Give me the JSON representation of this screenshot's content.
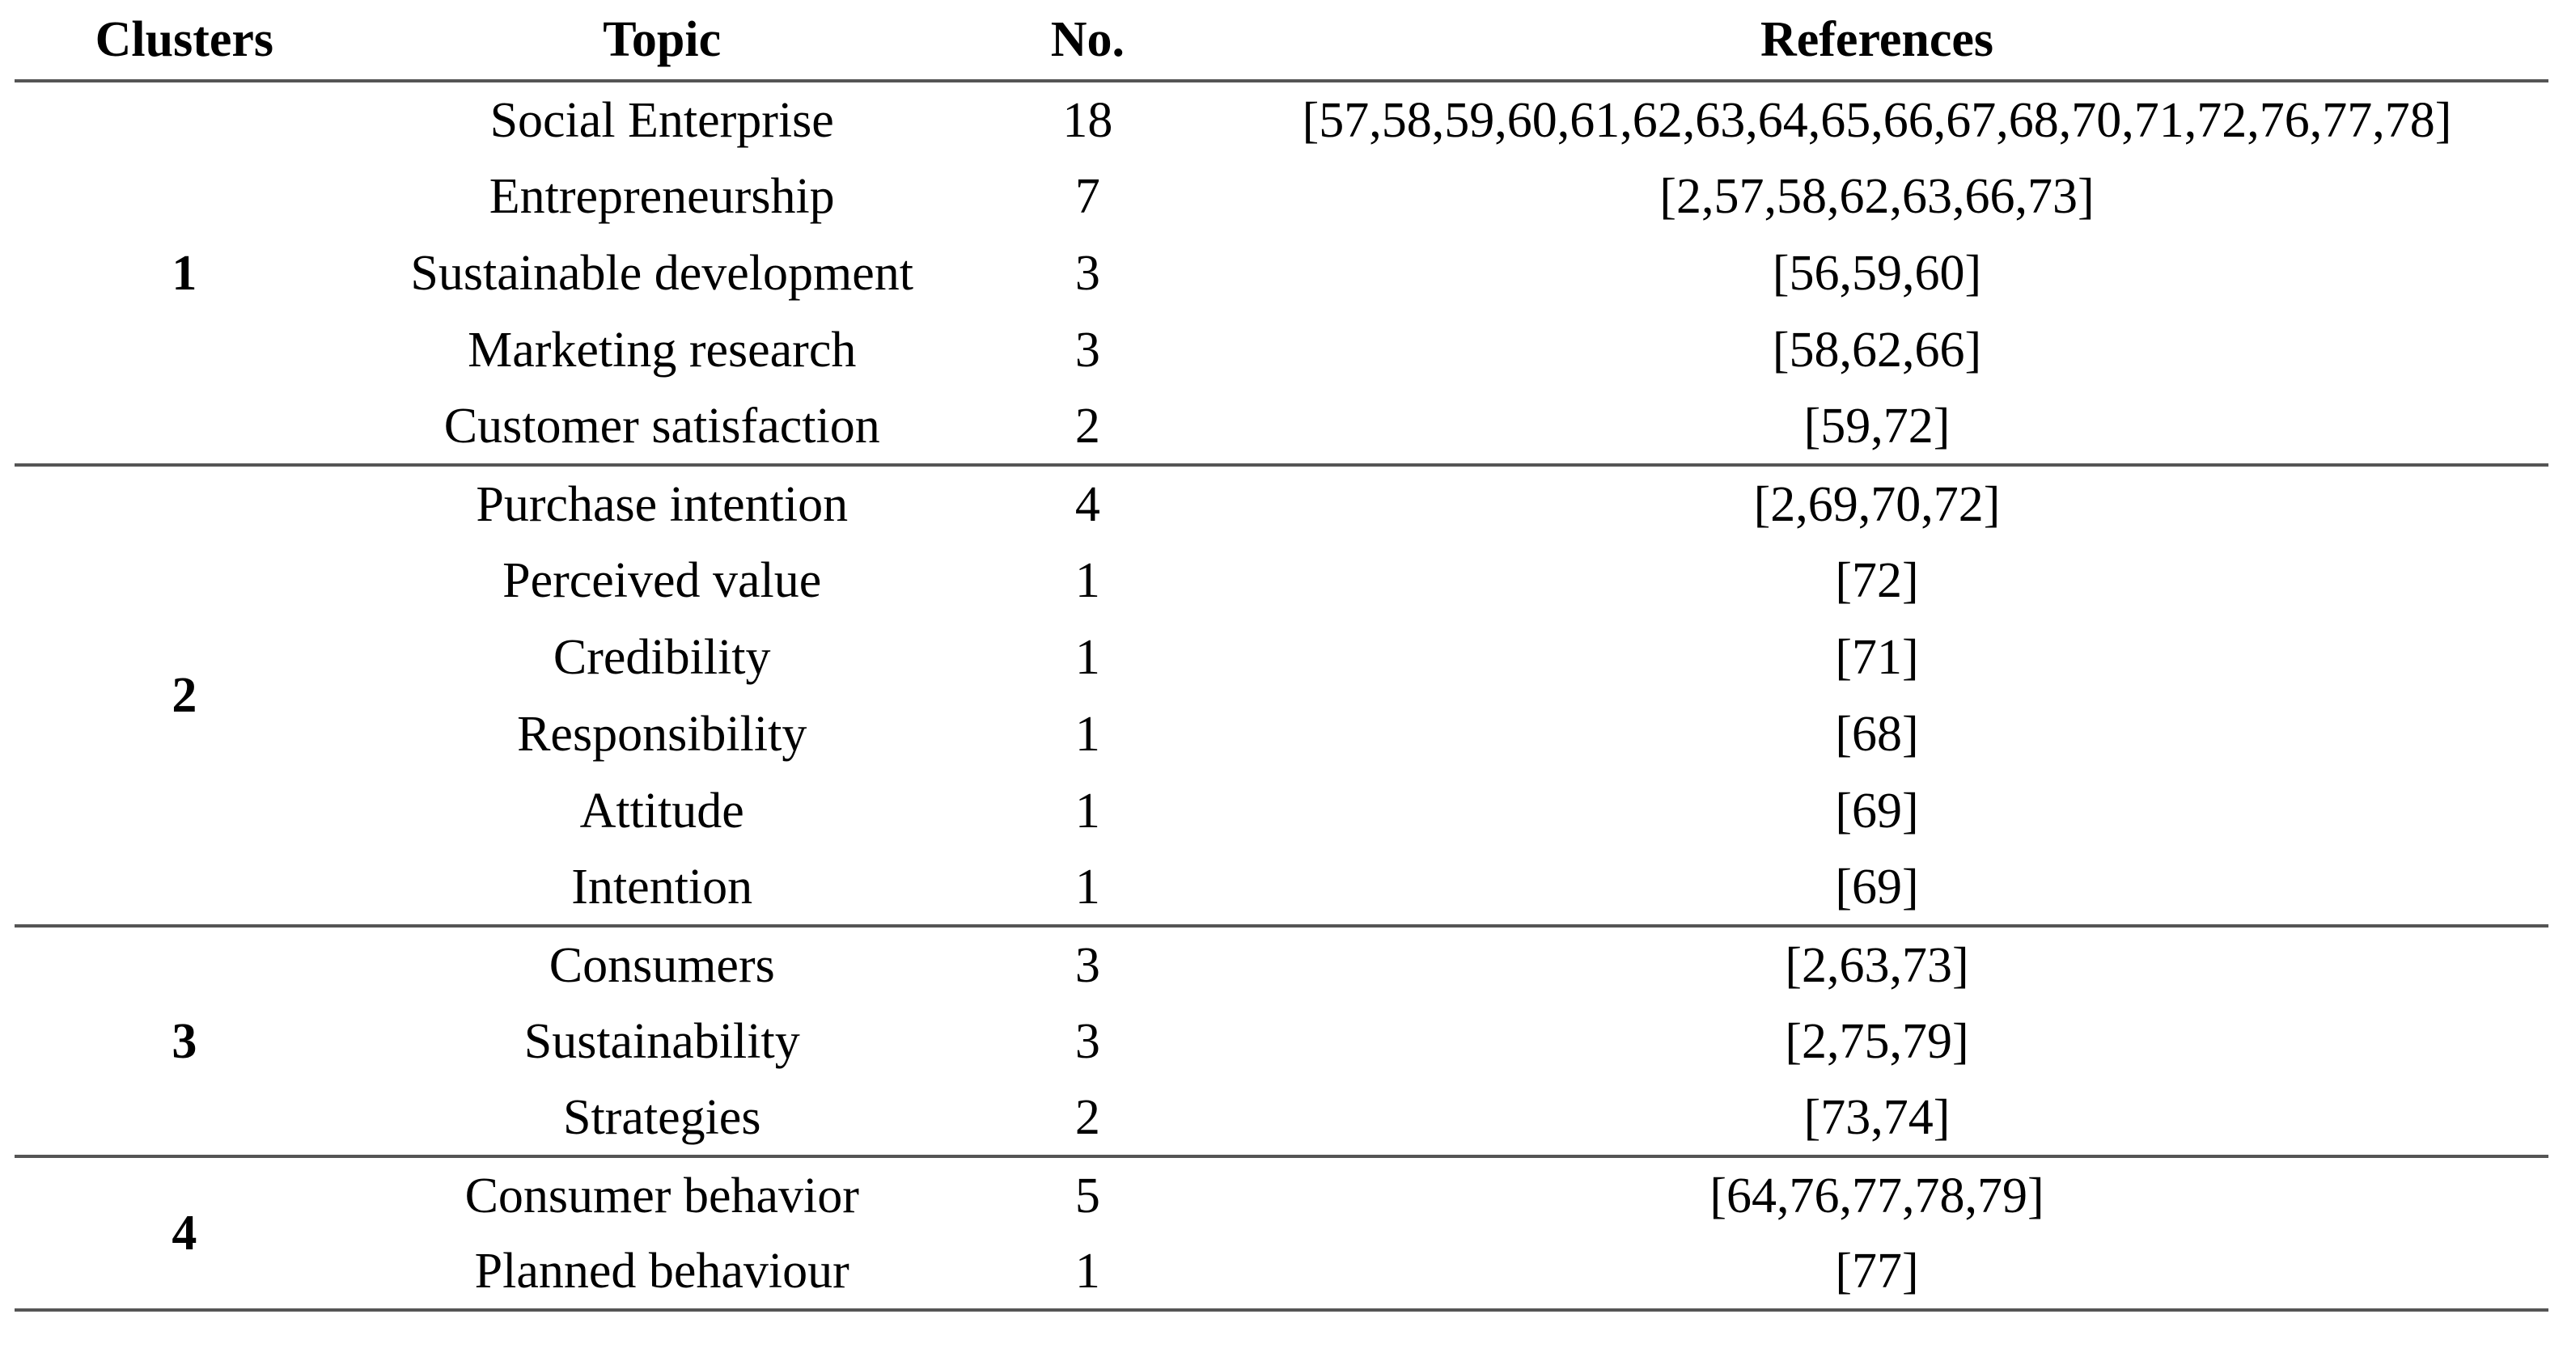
{
  "table": {
    "headers": {
      "clusters": "Clusters",
      "topic": "Topic",
      "no": "No.",
      "references": "References"
    },
    "clusters": [
      {
        "label": "1",
        "rows": [
          {
            "topic": "Social Enterprise",
            "no": "18",
            "refs": "[57,58,59,60,61,62,63,64,65,66,67,68,70,71,72,76,77,78]"
          },
          {
            "topic": "Entrepreneurship",
            "no": "7",
            "refs": "[2,57,58,62,63,66,73]"
          },
          {
            "topic": "Sustainable development",
            "no": "3",
            "refs": "[56,59,60]"
          },
          {
            "topic": "Marketing research",
            "no": "3",
            "refs": "[58,62,66]"
          },
          {
            "topic": "Customer satisfaction",
            "no": "2",
            "refs": "[59,72]"
          }
        ]
      },
      {
        "label": "2",
        "rows": [
          {
            "topic": "Purchase intention",
            "no": "4",
            "refs": "[2,69,70,72]"
          },
          {
            "topic": "Perceived value",
            "no": "1",
            "refs": "[72]"
          },
          {
            "topic": "Credibility",
            "no": "1",
            "refs": "[71]"
          },
          {
            "topic": "Responsibility",
            "no": "1",
            "refs": "[68]"
          },
          {
            "topic": "Attitude",
            "no": "1",
            "refs": "[69]"
          },
          {
            "topic": "Intention",
            "no": "1",
            "refs": "[69]"
          }
        ]
      },
      {
        "label": "3",
        "rows": [
          {
            "topic": "Consumers",
            "no": "3",
            "refs": "[2,63,73]"
          },
          {
            "topic": "Sustainability",
            "no": "3",
            "refs": "[2,75,79]"
          },
          {
            "topic": "Strategies",
            "no": "2",
            "refs": "[73,74]"
          }
        ]
      },
      {
        "label": "4",
        "rows": [
          {
            "topic": "Consumer behavior",
            "no": "5",
            "refs": "[64,76,77,78,79]"
          },
          {
            "topic": "Planned behaviour",
            "no": "1",
            "refs": "[77]"
          }
        ]
      }
    ],
    "colors": {
      "rule": "#555555",
      "text": "#000000",
      "background": "#ffffff"
    }
  }
}
